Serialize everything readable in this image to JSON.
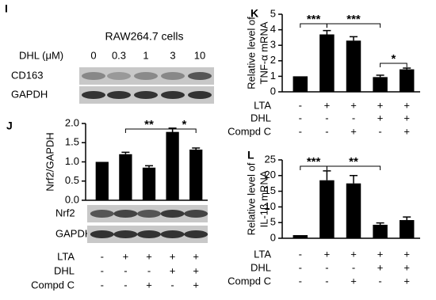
{
  "panel_i": {
    "panel": "I",
    "title": "RAW264.7 cells",
    "dose_label": "DHL (μM)",
    "doses": [
      "0",
      "0.3",
      "1",
      "3",
      "10"
    ],
    "blot": [
      "CD163",
      "GAPDH"
    ]
  },
  "chart_data": [
    {
      "type": "bar",
      "panel": "J",
      "ylabel": [
        "Nrf2/GAPDH"
      ],
      "color": "#000000",
      "values": [
        1.0,
        1.2,
        0.85,
        1.78,
        1.32
      ],
      "errors": [
        0,
        0.05,
        0.05,
        0.1,
        0.04
      ],
      "ylim": [
        0,
        2.0
      ],
      "yticks": [
        {
          "value": 0,
          "label": "0.0"
        },
        0.5,
        {
          "value": 1,
          "label": "1.0"
        },
        1.5,
        {
          "value": 2,
          "label": "2.0"
        }
      ],
      "annotations": [
        "**",
        "*"
      ],
      "blot": [
        "Nrf2",
        "GAPDH"
      ],
      "treatments": [
        {
          "name": "LTA",
          "levels": [
            "-",
            "+",
            "+",
            "+",
            "+"
          ]
        },
        {
          "name": "DHL",
          "levels": [
            "-",
            "-",
            "-",
            "+",
            "+"
          ]
        },
        {
          "name": "Compd C",
          "levels": [
            "-",
            "-",
            "+",
            "-",
            "+"
          ]
        }
      ]
    },
    {
      "type": "bar",
      "panel": "K",
      "ylabel": [
        "Relative level of",
        "TNF-α  mRNA"
      ],
      "color": "#000000",
      "values": [
        1.0,
        3.7,
        3.3,
        0.95,
        1.45
      ],
      "errors": [
        0,
        0.25,
        0.25,
        0.12,
        0.08
      ],
      "ylim": [
        0,
        5
      ],
      "yticks": [
        0,
        1,
        2,
        3,
        4,
        5
      ],
      "annotations": [
        "***",
        "***",
        "*"
      ],
      "treatments": [
        {
          "name": "LTA",
          "levels": [
            "-",
            "+",
            "+",
            "+",
            "+"
          ]
        },
        {
          "name": "DHL",
          "levels": [
            "-",
            "-",
            "-",
            "+",
            "+"
          ]
        },
        {
          "name": "Compd C",
          "levels": [
            "-",
            "-",
            "+",
            "-",
            "+"
          ]
        }
      ]
    },
    {
      "type": "bar",
      "panel": "L",
      "ylabel": [
        "Relative level of",
        "IL-1β  mRNA"
      ],
      "color": "#000000",
      "values": [
        1,
        18.5,
        17.5,
        4.3,
        5.8
      ],
      "errors": [
        0,
        3,
        2.5,
        0.6,
        1
      ],
      "ylim": [
        0,
        25
      ],
      "yticks": [
        0,
        5,
        10,
        15,
        20,
        25
      ],
      "annotations": [
        "***",
        "**"
      ],
      "treatments": [
        {
          "name": "LTA",
          "levels": [
            "-",
            "+",
            "+",
            "+",
            "+"
          ]
        },
        {
          "name": "DHL",
          "levels": [
            "-",
            "-",
            "-",
            "+",
            "+"
          ]
        },
        {
          "name": "Compd C",
          "levels": [
            "-",
            "-",
            "+",
            "-",
            "+"
          ]
        }
      ]
    }
  ]
}
